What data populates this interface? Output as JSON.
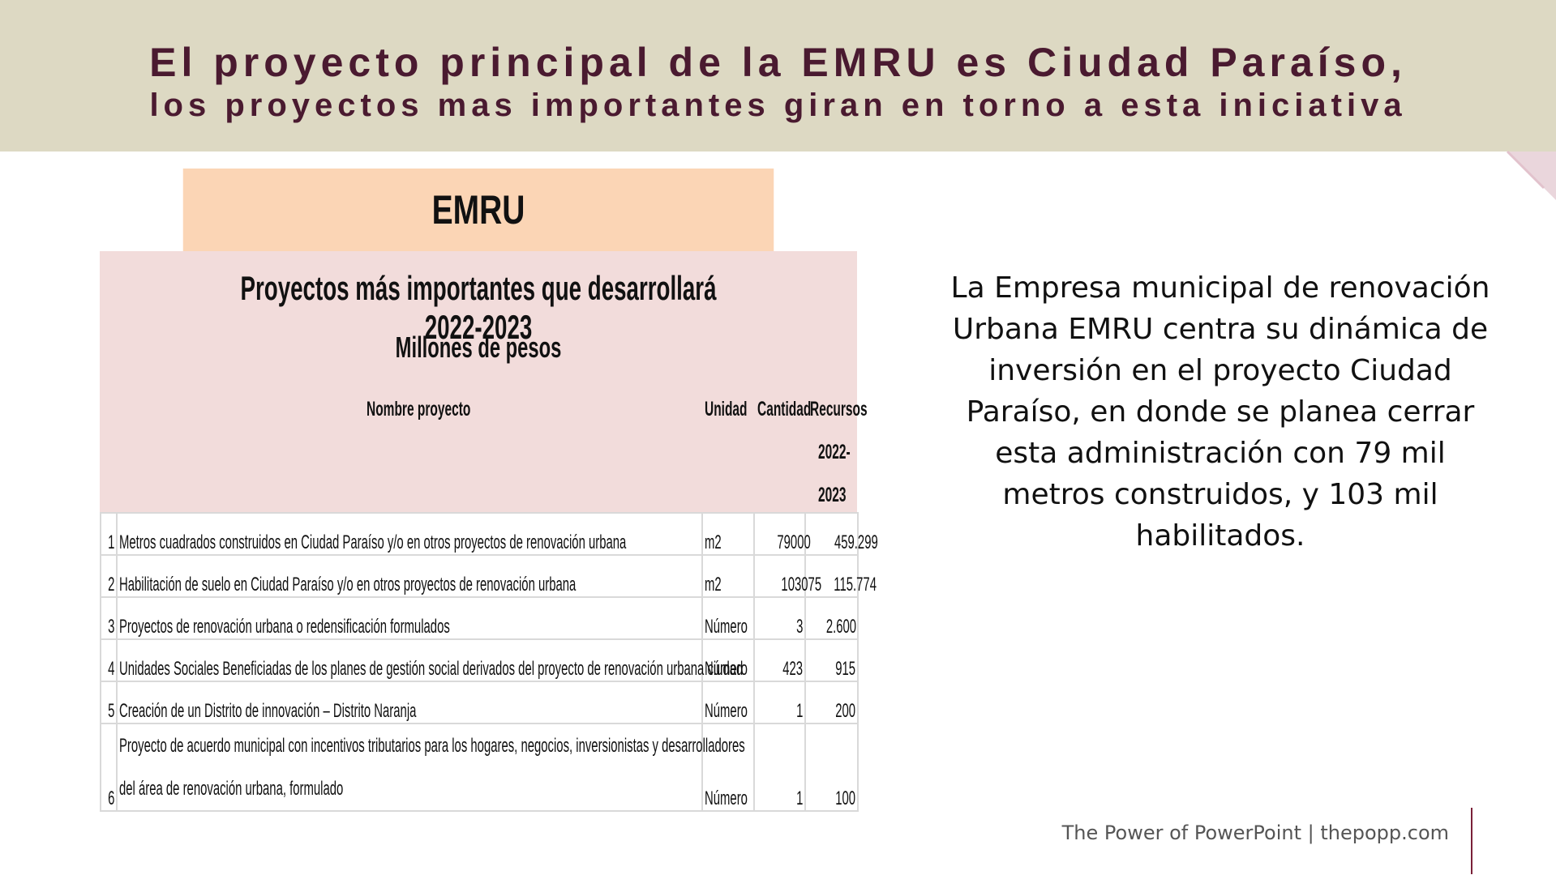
{
  "banner": {
    "line1": "El proyecto principal de la EMRU es Ciudad Paraíso,",
    "line2": "los proyectos mas importantes giran en torno a esta iniciativa"
  },
  "table": {
    "title": "EMRU",
    "subtitle": "Proyectos más importantes que desarrollará 2022-2023",
    "units_note": "Millones de pesos",
    "headers": {
      "name": "Nombre proyecto",
      "unit": "Unidad",
      "qty": "Cantidad",
      "res1": "Recursos",
      "res2": "2022-",
      "res3": "2023"
    },
    "rows": [
      {
        "idx": "1",
        "name": "Metros cuadrados construidos en Ciudad Paraíso y/o en otros proyectos de renovación urbana",
        "unit": "m2",
        "qty": "79000",
        "res": "459.299"
      },
      {
        "idx": "2",
        "name": "Habilitación de suelo en Ciudad Paraíso y/o en otros proyectos de renovación urbana",
        "unit": "m2",
        "qty": "103075",
        "res": "115.774"
      },
      {
        "idx": "3",
        "name": "Proyectos de renovación urbana o redensificación formulados",
        "unit": "Número",
        "qty": "3",
        "res": "2.600"
      },
      {
        "idx": "4",
        "name": "Unidades Sociales Beneficiadas de los planes de gestión social derivados del proyecto de renovación urbana ciudad",
        "unit": "Número",
        "qty": "423",
        "res": "915"
      },
      {
        "idx": "5",
        "name": "Creación de un Distrito de innovación – Distrito Naranja",
        "unit": "Número",
        "qty": "1",
        "res": "200"
      },
      {
        "idx": "6",
        "name_line1": "Proyecto de acuerdo municipal con incentivos tributarios para los hogares, negocios, inversionistas y desarrolladores",
        "name_line2": "del área de renovación urbana, formulado",
        "unit": "Número",
        "qty": "1",
        "res": "100"
      }
    ]
  },
  "description": "La Empresa municipal de renovación Urbana EMRU centra su dinámica de inversión en el proyecto Ciudad Paraíso, en donde se planea cerrar esta administración con 79 mil metros construidos, y 103 mil habilitados.",
  "footer": "The Power of PowerPoint | thepopp.com",
  "colors": {
    "banner": "#ddd9c3",
    "banner_text": "#4a1a30",
    "title_fill": "#fbd5b5",
    "header_fill": "#f2dcdb",
    "accent": "#7a2038"
  }
}
